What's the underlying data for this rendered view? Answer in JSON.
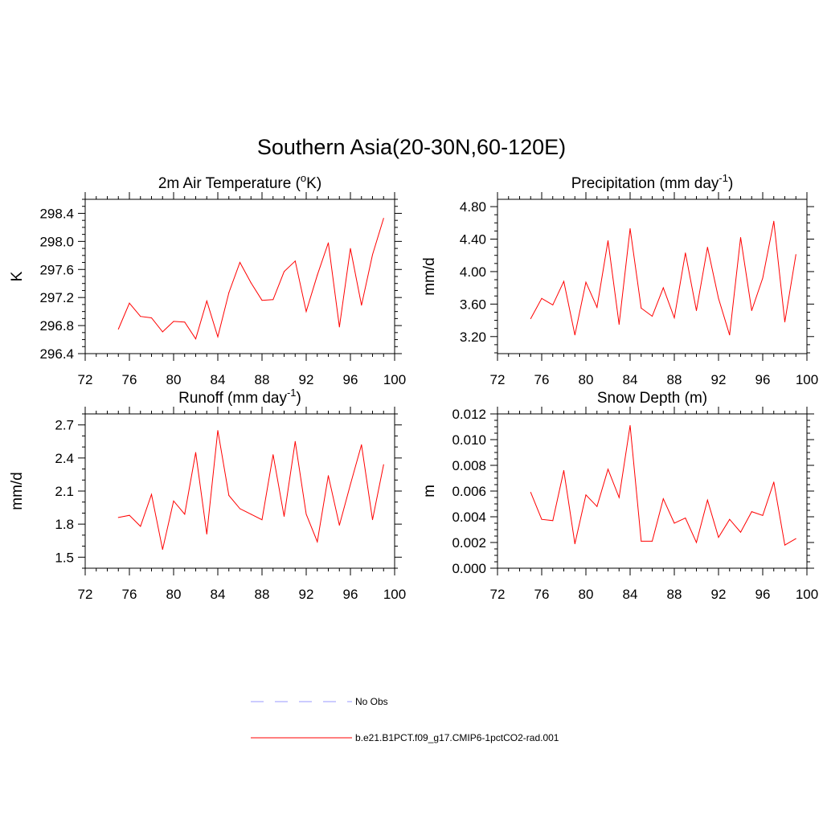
{
  "title": "Southern Asia(20-30N,60-120E)",
  "colors": {
    "model": "#ff0000",
    "obs": "#9a9aff",
    "axis": "#000000"
  },
  "legend": {
    "items": [
      {
        "label": "No Obs",
        "style": "dashed",
        "color": "#9a9aff"
      },
      {
        "label": "b.e21.B1PCT.f09_g17.CMIP6-1pctCO2-rad.001",
        "style": "solid",
        "color": "#ff0000"
      }
    ]
  },
  "chart_data": [
    {
      "type": "line",
      "title": "2m Air Temperature (",
      "title_sup": "o",
      "title_end": "K)",
      "ylabel": "K",
      "xlim": [
        72,
        100
      ],
      "xticks": [
        72,
        76,
        80,
        84,
        88,
        92,
        96,
        100
      ],
      "xtick_labels": [
        "72",
        "76",
        "80",
        "84",
        "88",
        "92",
        "96",
        "100"
      ],
      "ylim": [
        296.4,
        298.6
      ],
      "yticks": [
        296.4,
        296.8,
        297.2,
        297.6,
        298.0,
        298.4
      ],
      "ytick_labels": [
        "296.4",
        "296.8",
        "297.2",
        "297.6",
        "298.0",
        "298.4"
      ],
      "yminor": 0.1,
      "x": [
        75,
        76,
        77,
        78,
        79,
        80,
        81,
        82,
        83,
        84,
        85,
        86,
        87,
        88,
        89,
        90,
        91,
        92,
        93,
        94,
        95,
        96,
        97,
        98,
        99
      ],
      "series": [
        {
          "values": [
            296.75,
            297.12,
            296.93,
            296.91,
            296.71,
            296.86,
            296.85,
            296.61,
            297.15,
            296.64,
            297.27,
            297.7,
            297.41,
            297.16,
            297.17,
            297.57,
            297.72,
            297.0,
            297.52,
            297.98,
            296.78,
            297.9,
            297.09,
            297.81,
            298.33
          ]
        }
      ]
    },
    {
      "type": "line",
      "title": "Precipitation (mm day",
      "title_sup": "-1",
      "title_end": ")",
      "ylabel": "mm/d",
      "xlim": [
        72,
        100
      ],
      "xticks": [
        72,
        76,
        80,
        84,
        88,
        92,
        96,
        100
      ],
      "xtick_labels": [
        "72",
        "76",
        "80",
        "84",
        "88",
        "92",
        "96",
        "100"
      ],
      "ylim": [
        2.99,
        4.89
      ],
      "yticks": [
        3.2,
        3.6,
        4.0,
        4.4,
        4.8
      ],
      "ytick_labels": [
        "3.20",
        "3.60",
        "4.00",
        "4.40",
        "4.80"
      ],
      "yminor": 0.1,
      "x": [
        75,
        76,
        77,
        78,
        79,
        80,
        81,
        82,
        83,
        84,
        85,
        86,
        87,
        88,
        89,
        90,
        91,
        92,
        93,
        94,
        95,
        96,
        97,
        98,
        99
      ],
      "series": [
        {
          "values": [
            3.42,
            3.67,
            3.59,
            3.88,
            3.22,
            3.87,
            3.56,
            4.38,
            3.35,
            4.53,
            3.55,
            3.45,
            3.8,
            3.43,
            4.23,
            3.52,
            4.3,
            3.67,
            3.22,
            4.42,
            3.52,
            3.92,
            4.62,
            3.38,
            4.21
          ]
        }
      ]
    },
    {
      "type": "line",
      "title": "Runoff (mm day",
      "title_sup": "-1",
      "title_end": ")",
      "ylabel": "mm/d",
      "xlim": [
        72,
        100
      ],
      "xticks": [
        72,
        76,
        80,
        84,
        88,
        92,
        96,
        100
      ],
      "xtick_labels": [
        "72",
        "76",
        "80",
        "84",
        "88",
        "92",
        "96",
        "100"
      ],
      "ylim": [
        1.4,
        2.8
      ],
      "yticks": [
        1.5,
        1.8,
        2.1,
        2.4,
        2.7
      ],
      "ytick_labels": [
        "1.5",
        "1.8",
        "2.1",
        "2.4",
        "2.7"
      ],
      "yminor": 0.1,
      "x": [
        75,
        76,
        77,
        78,
        79,
        80,
        81,
        82,
        83,
        84,
        85,
        86,
        87,
        88,
        89,
        90,
        91,
        92,
        93,
        94,
        95,
        96,
        97,
        98,
        99
      ],
      "series": [
        {
          "values": [
            1.86,
            1.88,
            1.78,
            2.07,
            1.57,
            2.01,
            1.89,
            2.45,
            1.71,
            2.65,
            2.06,
            1.94,
            1.89,
            1.84,
            2.43,
            1.87,
            2.55,
            1.89,
            1.64,
            2.24,
            1.79,
            2.16,
            2.52,
            1.84,
            2.34
          ]
        }
      ]
    },
    {
      "type": "line",
      "title": "Snow Depth (m)",
      "title_sup": "",
      "title_end": "",
      "ylabel": "m",
      "xlim": [
        72,
        100
      ],
      "xticks": [
        72,
        76,
        80,
        84,
        88,
        92,
        96,
        100
      ],
      "xtick_labels": [
        "72",
        "76",
        "80",
        "84",
        "88",
        "92",
        "96",
        "100"
      ],
      "ylim": [
        0.0,
        0.012
      ],
      "yticks": [
        0.0,
        0.002,
        0.004,
        0.006,
        0.008,
        0.01,
        0.012
      ],
      "ytick_labels": [
        "0.000",
        "0.002",
        "0.004",
        "0.006",
        "0.008",
        "0.010",
        "0.012"
      ],
      "yminor": 0.0005,
      "x": [
        75,
        76,
        77,
        78,
        79,
        80,
        81,
        82,
        83,
        84,
        85,
        86,
        87,
        88,
        89,
        90,
        91,
        92,
        93,
        94,
        95,
        96,
        97,
        98,
        99
      ],
      "series": [
        {
          "values": [
            0.0059,
            0.0038,
            0.0037,
            0.0076,
            0.0019,
            0.0057,
            0.0048,
            0.0077,
            0.0055,
            0.0111,
            0.0021,
            0.0021,
            0.0054,
            0.0035,
            0.0039,
            0.002,
            0.0053,
            0.0024,
            0.0038,
            0.0028,
            0.0044,
            0.0041,
            0.0067,
            0.0018,
            0.0023
          ]
        }
      ]
    }
  ]
}
